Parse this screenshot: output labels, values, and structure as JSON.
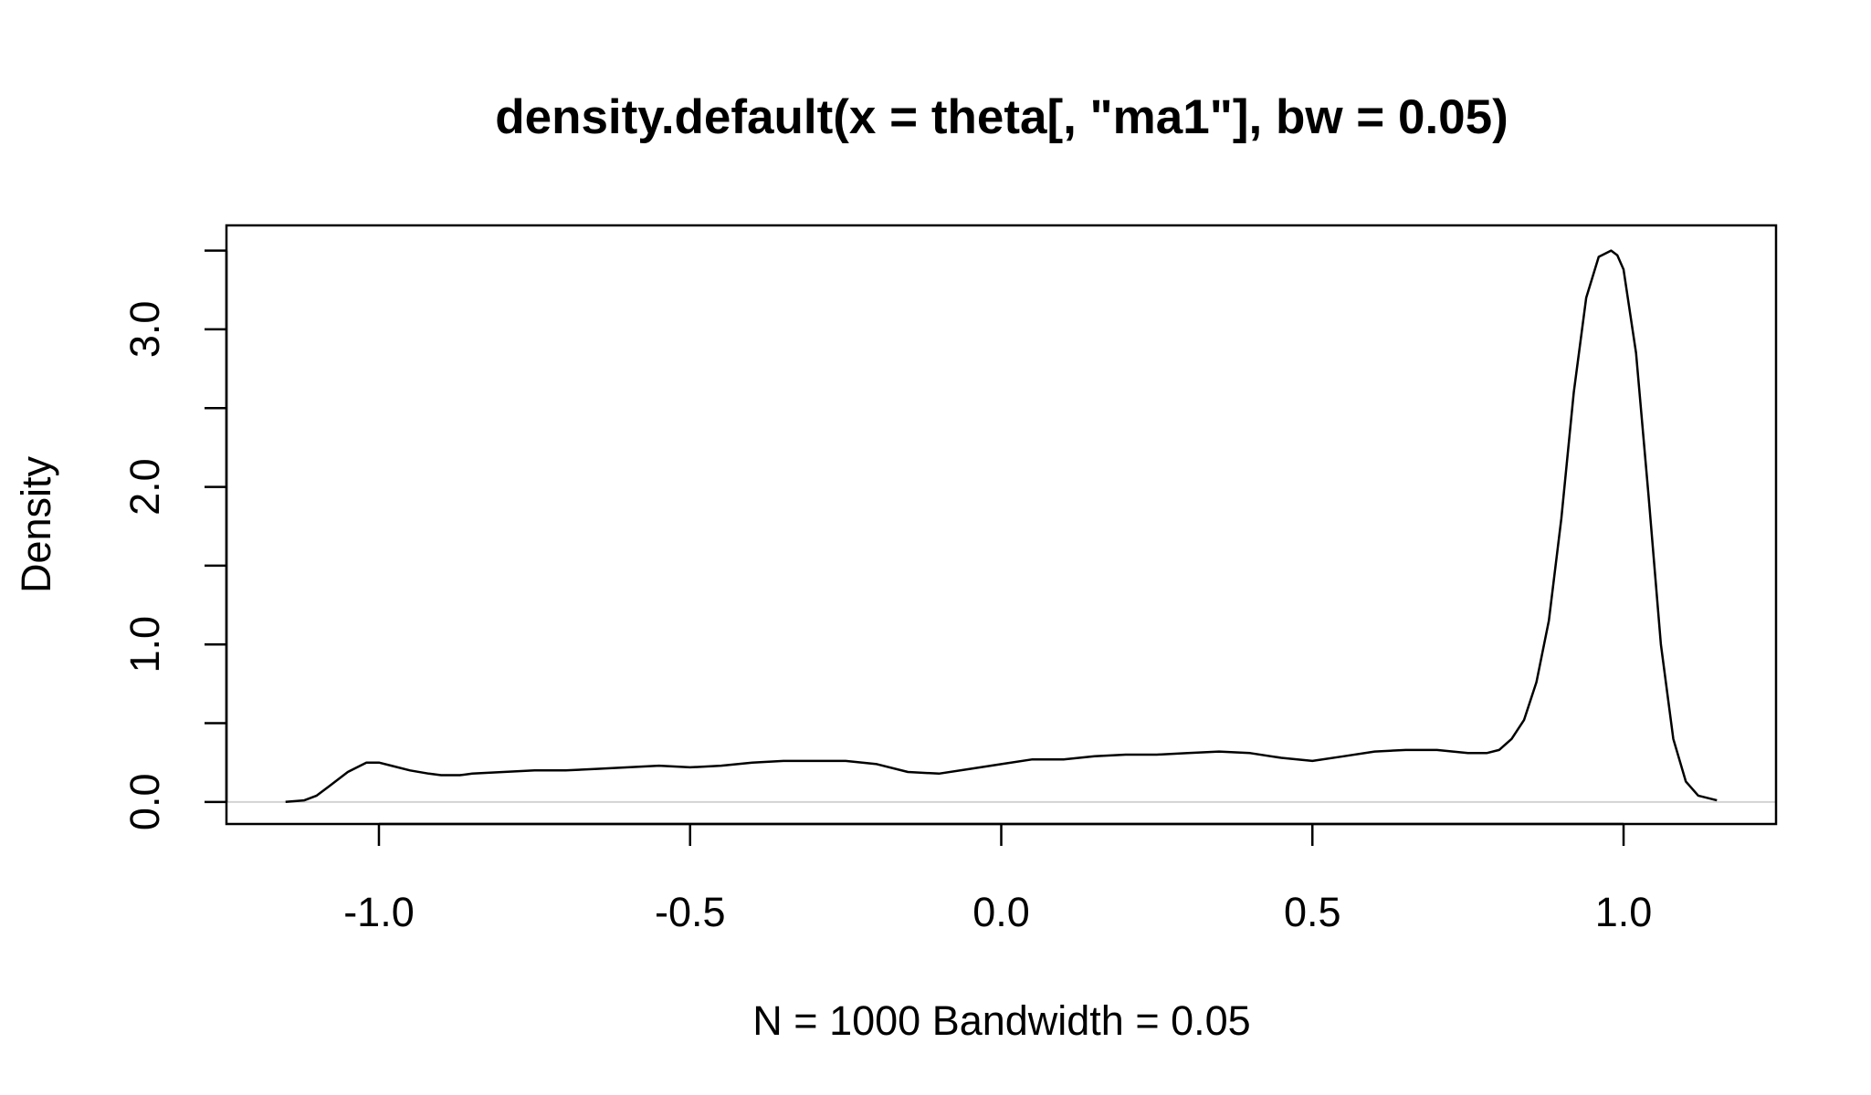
{
  "chart_data": {
    "type": "line",
    "title": "density.default(x = theta[, \"ma1\"], bw = 0.05)",
    "xlabel": "N = 1000   Bandwidth = 0.05",
    "ylabel": "Density",
    "xlim": [
      -1.245,
      1.245
    ],
    "ylim": [
      -0.14,
      3.66
    ],
    "x_ticks": [
      -1.0,
      -0.5,
      0.0,
      0.5,
      1.0
    ],
    "x_tick_labels": [
      "-1.0",
      "-0.5",
      "0.0",
      "0.5",
      "1.0"
    ],
    "y_ticks": [
      0.0,
      0.5,
      1.0,
      1.5,
      2.0,
      2.5,
      3.0,
      3.5
    ],
    "y_tick_labels": [
      "0.0",
      "",
      "1.0",
      "",
      "2.0",
      "",
      "3.0",
      ""
    ],
    "grid": false,
    "baseline": {
      "y": 0,
      "color": "#d3d3d3"
    },
    "line_color": "#000000",
    "series": [
      {
        "x": [
          -1.15,
          -1.12,
          -1.1,
          -1.08,
          -1.05,
          -1.02,
          -1.0,
          -0.98,
          -0.95,
          -0.92,
          -0.9,
          -0.87,
          -0.85,
          -0.8,
          -0.75,
          -0.7,
          -0.65,
          -0.6,
          -0.55,
          -0.5,
          -0.45,
          -0.4,
          -0.35,
          -0.3,
          -0.25,
          -0.2,
          -0.15,
          -0.1,
          -0.05,
          0.0,
          0.05,
          0.1,
          0.15,
          0.2,
          0.25,
          0.3,
          0.35,
          0.4,
          0.45,
          0.5,
          0.55,
          0.6,
          0.65,
          0.7,
          0.75,
          0.78,
          0.8,
          0.82,
          0.84,
          0.86,
          0.88,
          0.9,
          0.92,
          0.94,
          0.96,
          0.98,
          0.99,
          1.0,
          1.02,
          1.04,
          1.06,
          1.08,
          1.1,
          1.12,
          1.15
        ],
        "y": [
          0.0,
          0.01,
          0.04,
          0.1,
          0.19,
          0.25,
          0.25,
          0.23,
          0.2,
          0.18,
          0.17,
          0.17,
          0.18,
          0.19,
          0.2,
          0.2,
          0.21,
          0.22,
          0.23,
          0.22,
          0.23,
          0.25,
          0.26,
          0.26,
          0.26,
          0.24,
          0.19,
          0.18,
          0.21,
          0.24,
          0.27,
          0.27,
          0.29,
          0.3,
          0.3,
          0.31,
          0.32,
          0.31,
          0.28,
          0.26,
          0.29,
          0.32,
          0.33,
          0.33,
          0.31,
          0.31,
          0.33,
          0.4,
          0.52,
          0.76,
          1.15,
          1.8,
          2.6,
          3.2,
          3.46,
          3.5,
          3.47,
          3.38,
          2.85,
          1.95,
          1.0,
          0.4,
          0.13,
          0.04,
          0.01
        ]
      }
    ]
  }
}
